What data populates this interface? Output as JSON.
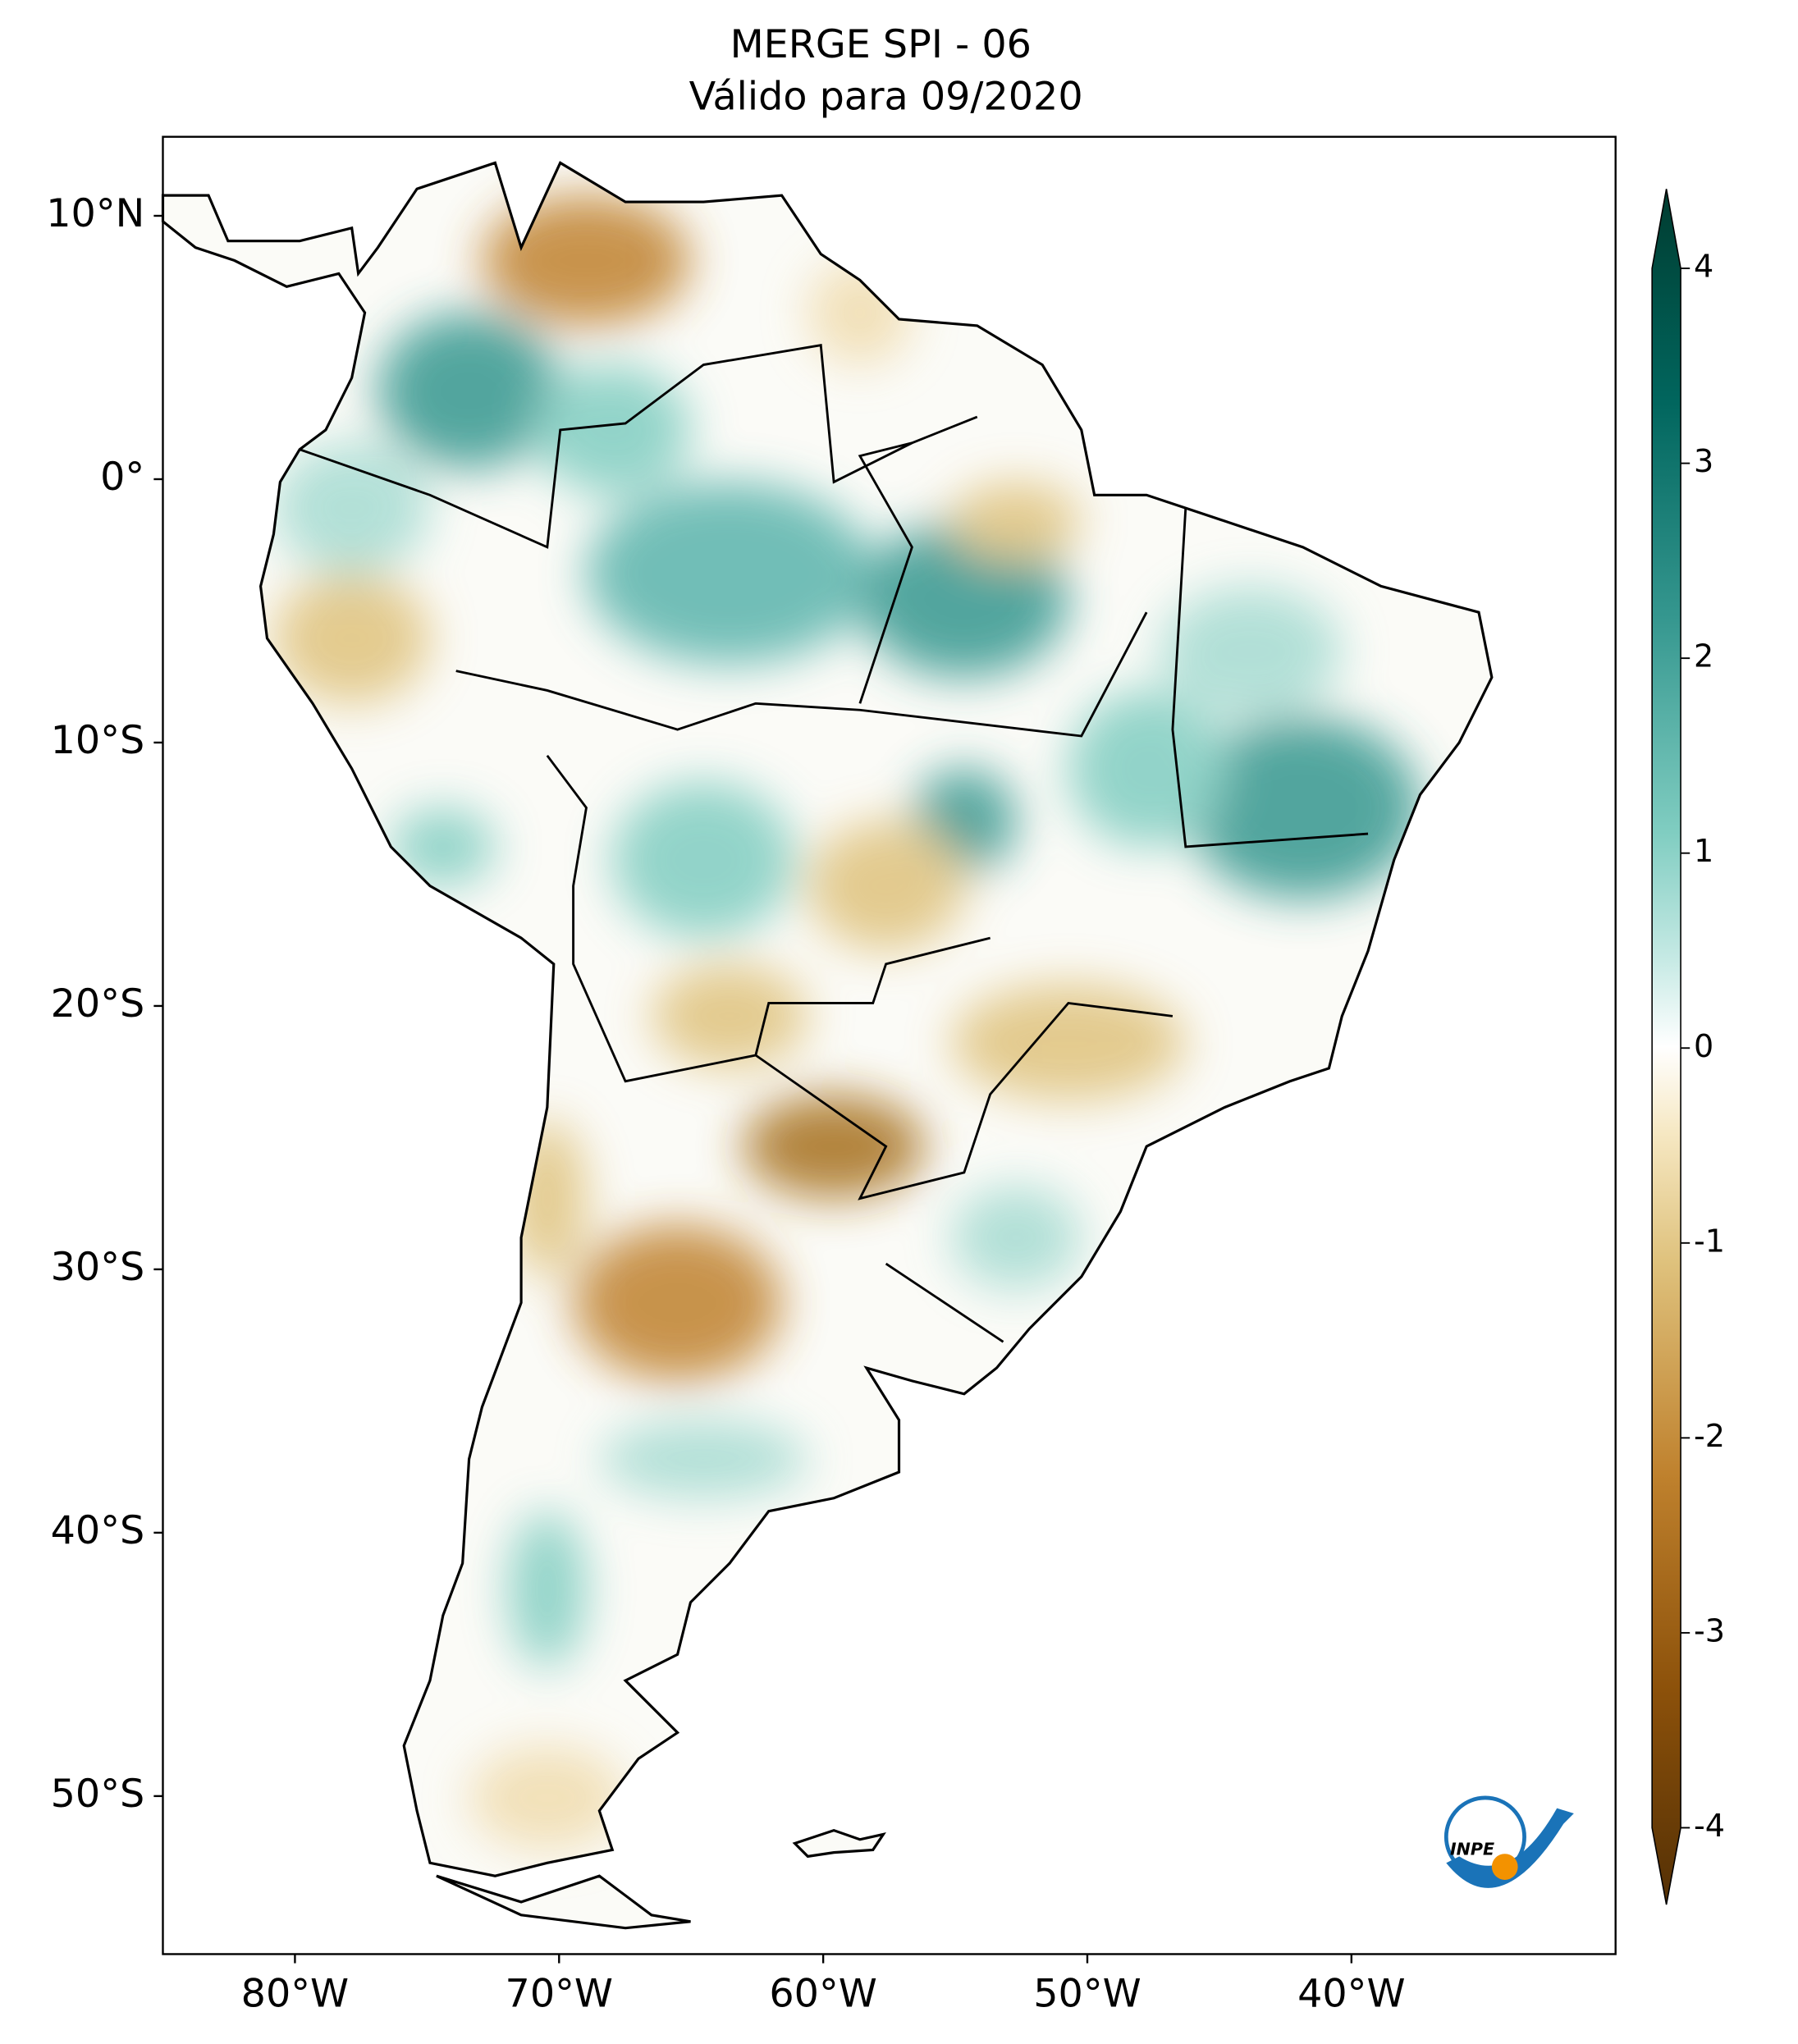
{
  "map": {
    "title": "MERGE   SPI - 06",
    "subtitle": "Válido para 09/2020",
    "xlim": [
      -85,
      -30
    ],
    "ylim": [
      -56,
      13
    ],
    "xticks": [
      {
        "value": -80,
        "label": "80°W"
      },
      {
        "value": -70,
        "label": "70°W"
      },
      {
        "value": -60,
        "label": "60°W"
      },
      {
        "value": -50,
        "label": "50°W"
      },
      {
        "value": -40,
        "label": "40°W"
      }
    ],
    "yticks": [
      {
        "value": 10,
        "label": "10°N"
      },
      {
        "value": 0,
        "label": "0°"
      },
      {
        "value": -10,
        "label": "10°S"
      },
      {
        "value": -20,
        "label": "20°S"
      },
      {
        "value": -30,
        "label": "30°S"
      },
      {
        "value": -40,
        "label": "40°S"
      },
      {
        "value": -50,
        "label": "50°S"
      }
    ],
    "colorbar": {
      "lim": [
        -4,
        4
      ],
      "ticks": [
        -4,
        -3,
        -2,
        -1,
        0,
        1,
        2,
        3,
        4
      ]
    },
    "logo": "INPE"
  }
}
